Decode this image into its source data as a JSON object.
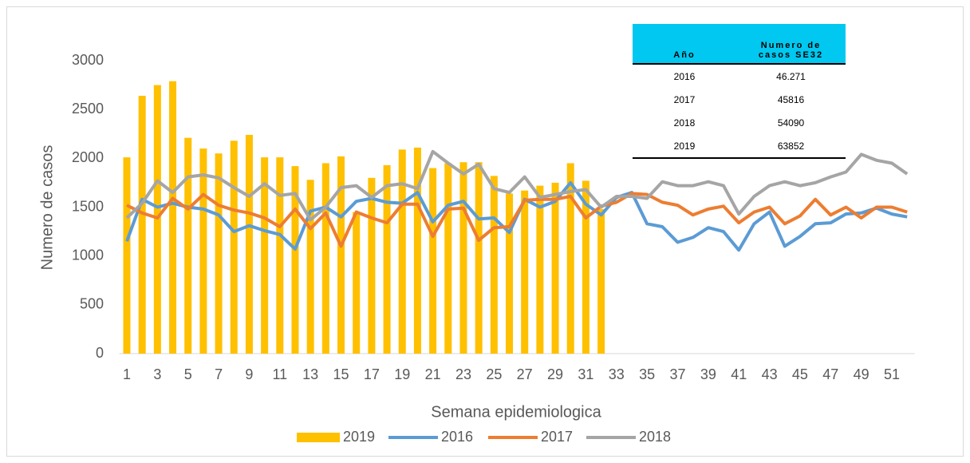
{
  "chart_data": {
    "type": "combo",
    "y_label": "Numero de casos",
    "x_label": "Semana epidemiologica",
    "categories": [
      "1",
      null,
      "3",
      null,
      "5",
      null,
      "7",
      null,
      "9",
      null,
      "11",
      null,
      "13",
      null,
      "15",
      null,
      "17",
      null,
      "19",
      null,
      "21",
      null,
      "23",
      null,
      "25",
      null,
      "27",
      null,
      "29",
      null,
      "31",
      null,
      "33",
      null,
      "35",
      null,
      "37",
      null,
      "39",
      null,
      "41",
      null,
      "43",
      null,
      "45",
      null,
      "47",
      null,
      "49",
      null,
      "51",
      null
    ],
    "ylim": [
      0,
      3000
    ],
    "yticks": [
      0,
      500,
      1000,
      1500,
      2000,
      2500,
      3000
    ],
    "grid": false,
    "legend": "bottom",
    "series": [
      {
        "name": "2019",
        "type": "bar",
        "color": "#ffc000",
        "values": [
          2010,
          2640,
          2750,
          2790,
          2210,
          2100,
          2050,
          2180,
          2240,
          2010,
          2010,
          1920,
          1780,
          1950,
          2020,
          1450,
          1800,
          1930,
          2090,
          2110,
          1900,
          1950,
          1960,
          1960,
          1820,
          1640,
          1670,
          1720,
          1750,
          1950,
          1770,
          1480,
          null,
          null,
          null,
          null,
          null,
          null,
          null,
          null,
          null,
          null,
          null,
          null,
          null,
          null,
          null,
          null,
          null,
          null,
          null,
          null
        ]
      },
      {
        "name": "2016",
        "type": "line",
        "color": "#5b9bd5",
        "values": [
          1150,
          1580,
          1500,
          1540,
          1500,
          1480,
          1420,
          1250,
          1310,
          1260,
          1220,
          1070,
          1460,
          1500,
          1400,
          1560,
          1590,
          1550,
          1540,
          1650,
          1350,
          1520,
          1560,
          1380,
          1390,
          1240,
          1580,
          1500,
          1560,
          1750,
          1530,
          1420,
          1600,
          1650,
          1330,
          1300,
          1140,
          1190,
          1290,
          1250,
          1060,
          1330,
          1450,
          1100,
          1200,
          1330,
          1340,
          1430,
          1440,
          1490,
          1430,
          1400
        ]
      },
      {
        "name": "2017",
        "type": "line",
        "color": "#ed7d31",
        "values": [
          1520,
          1440,
          1390,
          1590,
          1480,
          1630,
          1520,
          1470,
          1440,
          1390,
          1300,
          1480,
          1280,
          1440,
          1100,
          1450,
          1390,
          1340,
          1530,
          1530,
          1200,
          1480,
          1490,
          1160,
          1290,
          1300,
          1570,
          1580,
          1580,
          1610,
          1390,
          1510,
          1550,
          1640,
          1630,
          1550,
          1520,
          1420,
          1480,
          1510,
          1340,
          1450,
          1500,
          1330,
          1410,
          1580,
          1420,
          1500,
          1390,
          1500,
          1500,
          1450
        ]
      },
      {
        "name": "2018",
        "type": "line",
        "color": "#a5a5a5",
        "values": [
          1390,
          1540,
          1770,
          1650,
          1810,
          1830,
          1800,
          1700,
          1610,
          1740,
          1620,
          1640,
          1370,
          1500,
          1700,
          1720,
          1600,
          1720,
          1740,
          1690,
          2070,
          1950,
          1840,
          1940,
          1690,
          1650,
          1810,
          1600,
          1630,
          1660,
          1680,
          1500,
          1610,
          1610,
          1590,
          1760,
          1720,
          1720,
          1760,
          1720,
          1430,
          1610,
          1720,
          1760,
          1720,
          1750,
          1810,
          1860,
          2040,
          1980,
          1950,
          1840
        ]
      }
    ]
  },
  "table": {
    "header": [
      "Año",
      "Numero de casos SE32"
    ],
    "rows": [
      [
        "2016",
        "46.271"
      ],
      [
        "2017",
        "45816"
      ],
      [
        "2018",
        "54090"
      ],
      [
        "2019",
        "63852"
      ]
    ]
  }
}
